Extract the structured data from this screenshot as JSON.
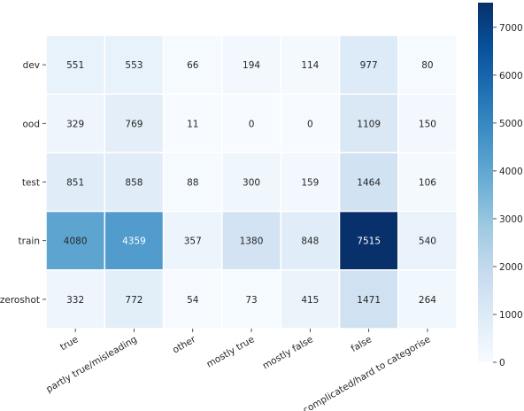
{
  "chart_data": {
    "type": "heatmap",
    "title": "",
    "xlabel": "",
    "ylabel": "",
    "x_categories": [
      "true",
      "partly true/misleading",
      "other",
      "mostly true",
      "mostly false",
      "false",
      "complicated/hard to categorise"
    ],
    "y_categories": [
      "dev",
      "ood",
      "test",
      "train",
      "zeroshot"
    ],
    "values": [
      [
        551,
        553,
        66,
        194,
        114,
        977,
        80
      ],
      [
        329,
        769,
        11,
        0,
        0,
        1109,
        150
      ],
      [
        851,
        858,
        88,
        300,
        159,
        1464,
        106
      ],
      [
        4080,
        4359,
        357,
        1380,
        848,
        7515,
        540
      ],
      [
        332,
        772,
        54,
        73,
        415,
        1471,
        264
      ]
    ],
    "colorbar": {
      "colormap": "Blues",
      "range": [
        0,
        7515
      ],
      "ticks": [
        0,
        1000,
        2000,
        3000,
        4000,
        5000,
        6000,
        7000
      ]
    },
    "grid": false,
    "legend": "none"
  }
}
